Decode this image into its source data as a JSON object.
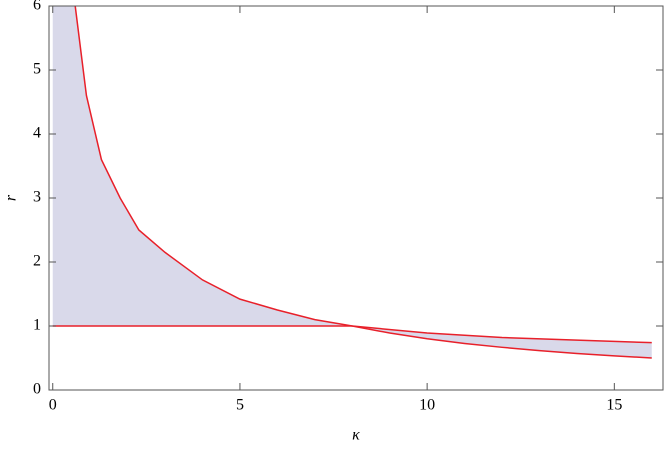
{
  "chart_data": {
    "type": "region",
    "xlabel": "κ",
    "ylabel": "r",
    "xlim": [
      -0.1,
      16.3
    ],
    "ylim": [
      0,
      6
    ],
    "xticks": [
      0,
      5,
      10,
      15
    ],
    "yticks": [
      0,
      1,
      2,
      3,
      4,
      5,
      6
    ],
    "fill": "#d9d9ea",
    "series": [
      {
        "color": "#e8202a",
        "x": [
          0.6,
          0.9,
          1.3,
          1.8,
          2.3,
          3,
          4,
          5,
          6,
          7,
          8,
          10,
          12,
          14,
          16
        ],
        "values": [
          6,
          4.6,
          3.6,
          3.0,
          2.5,
          2.15,
          1.72,
          1.42,
          1.25,
          1.1,
          1,
          0.89,
          0.82,
          0.78,
          0.74
        ]
      },
      {
        "color": "#e8202a",
        "x": [
          0,
          8,
          9,
          10,
          11,
          12,
          13,
          14,
          15,
          16
        ],
        "values": [
          1,
          1,
          0.89,
          0.8,
          0.727,
          0.667,
          0.615,
          0.571,
          0.533,
          0.5
        ]
      }
    ]
  }
}
